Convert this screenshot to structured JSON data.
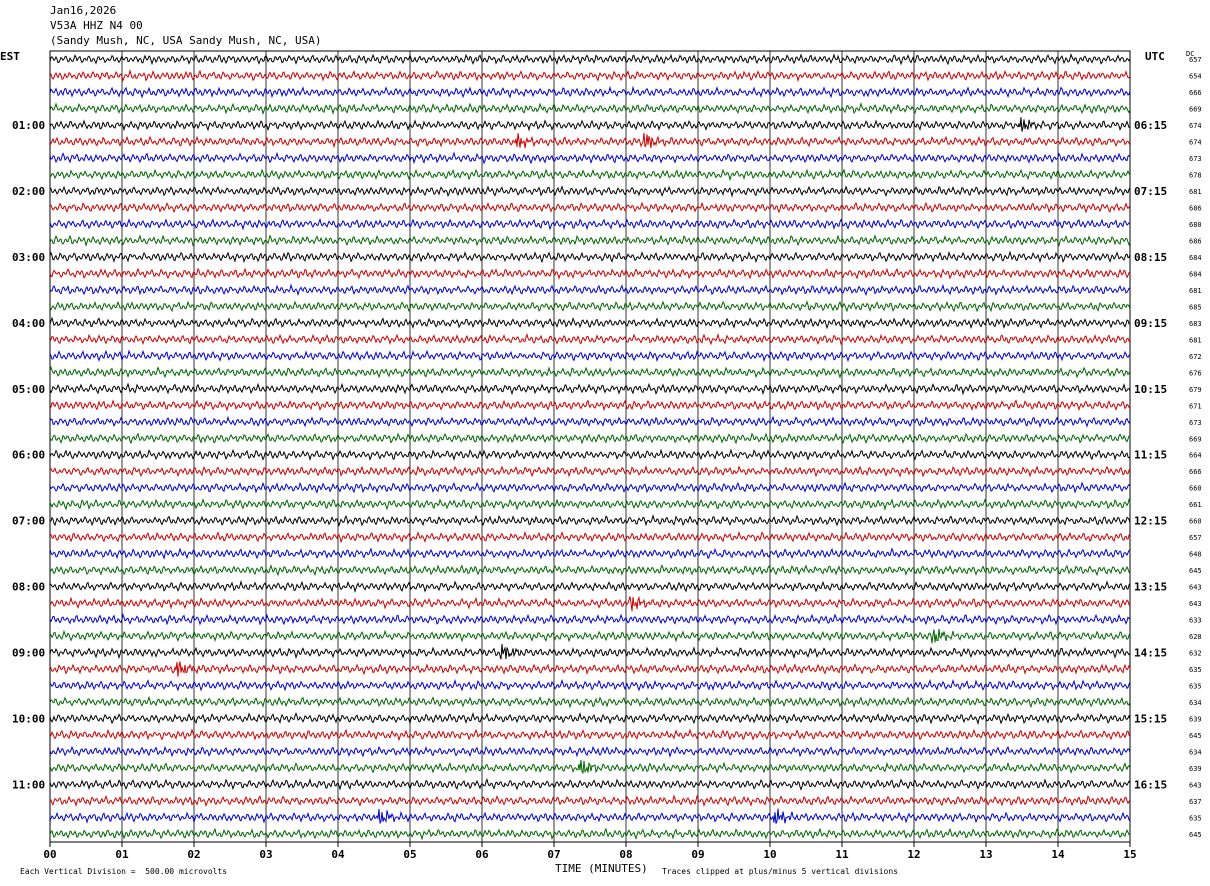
{
  "header": {
    "date": "Jan16,2026",
    "station": "V53A HHZ N4 00",
    "location": "(Sandy Mush, NC, USA Sandy Mush, NC, USA)"
  },
  "labels": {
    "left_zone": "EST",
    "right_zone": "UTC",
    "dc": "DC"
  },
  "footer": {
    "scale": "Each Vertical Division =  500.00 microvolts",
    "clip": "Traces clipped at plus/minus 5 vertical divisions"
  },
  "chart_data": {
    "type": "line",
    "xlabel": "TIME (MINUTES)",
    "xlim": [
      0,
      15
    ],
    "x_ticks": [
      "00",
      "01",
      "02",
      "03",
      "04",
      "05",
      "06",
      "07",
      "08",
      "09",
      "10",
      "11",
      "12",
      "13",
      "14",
      "15"
    ],
    "left_hour_labels": [
      "01:00",
      "02:00",
      "03:00",
      "04:00",
      "05:00",
      "06:00",
      "07:00",
      "08:00",
      "09:00",
      "10:00",
      "11:00"
    ],
    "right_hour_labels": [
      "06:15",
      "07:15",
      "08:15",
      "09:15",
      "10:15",
      "11:15",
      "12:15",
      "13:15",
      "14:15",
      "15:15",
      "16:15"
    ],
    "trace_colors": [
      "#000000",
      "#cc0000",
      "#0000cc",
      "#006600"
    ],
    "traces_count": 48,
    "dc_values": [
      "657",
      "654",
      "666",
      "669",
      "674",
      "674",
      "673",
      "678",
      "681",
      "686",
      "680",
      "686",
      "684",
      "684",
      "681",
      "685",
      "683",
      "681",
      "672",
      "676",
      "679",
      "671",
      "673",
      "669",
      "664",
      "666",
      "660",
      "661",
      "660",
      "657",
      "648",
      "645",
      "643",
      "643",
      "633",
      "628",
      "632",
      "635",
      "635",
      "634",
      "639",
      "645",
      "634",
      "639",
      "643",
      "637",
      "635",
      "645"
    ],
    "events": [
      {
        "trace": 4,
        "minute": 13.5
      },
      {
        "trace": 5,
        "minute": 6.5
      },
      {
        "trace": 5,
        "minute": 8.3
      },
      {
        "trace": 33,
        "minute": 8.1
      },
      {
        "trace": 35,
        "minute": 12.3
      },
      {
        "trace": 36,
        "minute": 6.3
      },
      {
        "trace": 37,
        "minute": 1.8
      },
      {
        "trace": 43,
        "minute": 7.4
      },
      {
        "trace": 46,
        "minute": 4.6
      },
      {
        "trace": 46,
        "minute": 10.1
      }
    ]
  }
}
